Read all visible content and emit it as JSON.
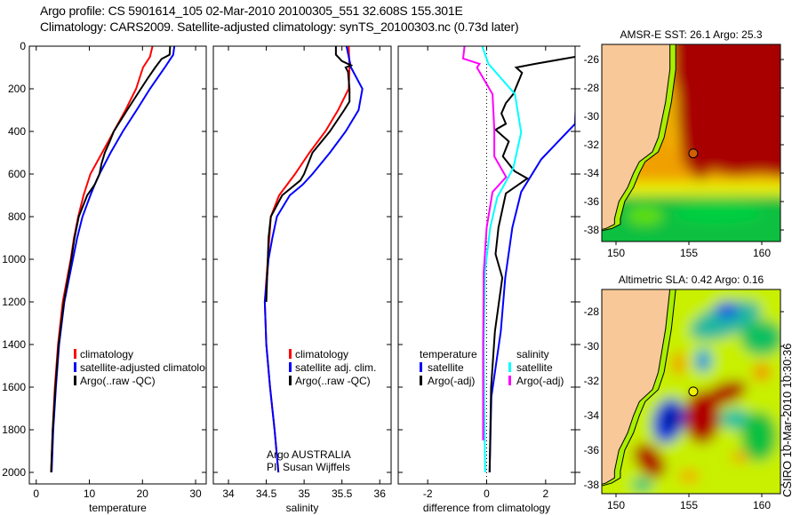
{
  "header": {
    "line1": "Argo profile: CS 5901614_105 02-Mar-2010 20100305_551 32.608S 155.301E",
    "line2": "Climatology: CARS2009. Satellite-adjusted climatology: synTS_20100303.nc (0.73d later)"
  },
  "side_text": "CSIRO 10-Mar-2010 10:30:36",
  "chart_data": [
    {
      "type": "line",
      "id": "temperature",
      "xlabel": "temperature",
      "ylabel": "",
      "xlim": [
        -1.3,
        32
      ],
      "ylim": [
        2055,
        0
      ],
      "xticks": [
        0,
        10,
        20,
        30
      ],
      "yticks": [
        0,
        200,
        400,
        600,
        800,
        1000,
        1200,
        1400,
        1600,
        1800,
        2000
      ],
      "legend": [
        "climatology",
        "satellite-adjusted climatology",
        "Argo(..raw -QC)"
      ],
      "series": [
        {
          "name": "climatology",
          "color": "#ff0000",
          "depth": [
            0,
            50,
            100,
            200,
            300,
            400,
            500,
            600,
            700,
            800,
            900,
            1000,
            1200,
            1400,
            1600,
            1800,
            2000
          ],
          "values": [
            21.9,
            21.4,
            20.1,
            18.8,
            16.8,
            14.6,
            12.4,
            10.2,
            8.9,
            7.9,
            7.1,
            6.5,
            5.0,
            4.1,
            3.5,
            3.1,
            2.8
          ]
        },
        {
          "name": "satellite-adjusted climatology",
          "color": "#0000ff",
          "depth": [
            0,
            40,
            100,
            200,
            300,
            400,
            500,
            600,
            650,
            700,
            800,
            900,
            1000,
            1200,
            1400,
            1600,
            1800,
            2000
          ],
          "values": [
            26.0,
            25.8,
            24.2,
            21.4,
            18.9,
            16.3,
            14.0,
            11.9,
            11.0,
            10.2,
            8.7,
            7.7,
            6.9,
            5.3,
            4.3,
            3.7,
            3.2,
            2.9
          ]
        },
        {
          "name": "Argo(..raw -QC)",
          "color": "#000000",
          "depth": [
            0,
            40,
            60,
            100,
            150,
            200,
            300,
            400,
            450,
            500,
            550,
            600,
            650,
            700,
            800,
            900,
            1000,
            1200,
            1400,
            1600,
            1800,
            2000
          ],
          "values": [
            25.2,
            25.1,
            23.6,
            22.4,
            21.0,
            19.7,
            17.1,
            14.6,
            13.8,
            12.9,
            12.3,
            11.9,
            11.0,
            9.6,
            8.0,
            7.2,
            6.6,
            5.2,
            4.2,
            3.6,
            3.1,
            2.8
          ]
        }
      ]
    },
    {
      "type": "line",
      "id": "salinity",
      "xlabel": "salinity",
      "xlim": [
        33.8,
        36.15
      ],
      "ylim": [
        2055,
        0
      ],
      "xticks": [
        34,
        34.5,
        35,
        35.5,
        36
      ],
      "yticks": [
        0,
        200,
        400,
        600,
        800,
        1000,
        1200,
        1400,
        1600,
        1800,
        2000
      ],
      "legend": [
        "climatology",
        "satellite adj. clim.",
        "Argo(..raw -QC)"
      ],
      "annotation": [
        "Argo AUSTRALIA",
        "PI: Susan Wijffels"
      ],
      "series": [
        {
          "name": "climatology",
          "color": "#ff0000",
          "depth": [
            0,
            100,
            200,
            300,
            400,
            500,
            600,
            700,
            800,
            900,
            1000,
            1200,
            1400,
            1600,
            1800,
            2000
          ],
          "values": [
            35.59,
            35.6,
            35.59,
            35.45,
            35.28,
            35.07,
            34.88,
            34.67,
            34.56,
            34.54,
            34.52,
            34.48,
            34.5,
            34.55,
            34.61,
            34.66
          ]
        },
        {
          "name": "satellite adj. clim.",
          "color": "#0000ff",
          "depth": [
            0,
            100,
            200,
            300,
            400,
            500,
            600,
            650,
            700,
            800,
            900,
            1000,
            1200,
            1400,
            1600,
            1800,
            2000
          ],
          "values": [
            35.56,
            35.62,
            35.77,
            35.72,
            35.55,
            35.34,
            35.11,
            34.98,
            34.81,
            34.64,
            34.58,
            34.53,
            34.48,
            34.5,
            34.55,
            34.61,
            34.66
          ]
        },
        {
          "name": "Argo(..raw -QC)",
          "color": "#000000",
          "depth": [
            0,
            40,
            70,
            90,
            100,
            120,
            200,
            260,
            300,
            400,
            500,
            600,
            630,
            700,
            800,
            900,
            1000,
            1100,
            1200
          ],
          "values": [
            35.42,
            35.42,
            35.5,
            35.62,
            35.55,
            35.58,
            35.6,
            35.6,
            35.53,
            35.34,
            35.11,
            35.0,
            34.95,
            34.71,
            34.56,
            34.53,
            34.52,
            34.51,
            34.5
          ]
        }
      ]
    },
    {
      "type": "line",
      "id": "difference",
      "xlabel": "difference from climatology",
      "xlim": [
        -3,
        3
      ],
      "ylim": [
        2055,
        0
      ],
      "xticks": [
        -2,
        0,
        2
      ],
      "yticks": [
        0,
        200,
        400,
        600,
        800,
        1000,
        1200,
        1400,
        1600,
        1800,
        2000
      ],
      "legend_groups": [
        {
          "header": "temperature",
          "items": [
            "satellite",
            "Argo(-adj)"
          ]
        },
        {
          "header": "salinity",
          "items": [
            "satellite",
            "Argo(-adj)"
          ]
        }
      ],
      "series": [
        {
          "name": "temperature satellite",
          "color": "#0000ff",
          "depth": [
            100,
            160,
            364,
            531,
            684,
            851,
            1087,
            1338,
            1645,
            2000
          ],
          "values": [
            3.1,
            3.05,
            3.0,
            1.85,
            1.17,
            0.87,
            0.63,
            0.48,
            0.16,
            0.1
          ]
        },
        {
          "name": "temperature Argo(-adj)",
          "color": "#000000",
          "depth": [
            30,
            50,
            83,
            100,
            125,
            225,
            267,
            316,
            364,
            392,
            447,
            517,
            587,
            621,
            691,
            851,
            976,
            1087,
            1338,
            1600,
            2000
          ],
          "values": [
            3.4,
            3.0,
            1.65,
            1.0,
            1.2,
            0.9,
            0.65,
            0.5,
            0.65,
            0.3,
            0.75,
            0.55,
            0.95,
            1.38,
            0.65,
            0.4,
            0.3,
            0.53,
            0.28,
            0.15,
            0.1
          ]
        },
        {
          "name": "salinity satellite",
          "color": "#00ffff",
          "depth": [
            0,
            83,
            225,
            405,
            572,
            710,
            851,
            1060,
            1400,
            1700,
            2000
          ],
          "values": [
            -0.15,
            0.06,
            0.96,
            1.17,
            0.9,
            0.36,
            0.12,
            -0.06,
            -0.1,
            -0.08,
            -0.05
          ]
        },
        {
          "name": "salinity Argo(-adj)",
          "color": "#ff00ff",
          "depth": [
            0,
            58,
            83,
            100,
            225,
            392,
            517,
            614,
            684,
            851,
            1060,
            1400,
            1850
          ],
          "values": [
            -0.75,
            -0.8,
            -0.24,
            -0.33,
            0.2,
            0.26,
            0.26,
            0.66,
            0.2,
            0.0,
            -0.1,
            -0.12,
            -0.12
          ]
        }
      ]
    }
  ],
  "maps": [
    {
      "title": "AMSR-E SST: 26.1 Argo: 25.3",
      "lon_ticks": [
        150,
        155,
        160
      ],
      "lat_ticks": [
        -26,
        -28,
        -30,
        -32,
        -34,
        -36,
        -38
      ],
      "argo_lon": 155.301,
      "argo_lat": -32.608,
      "marker_color": "#d06000"
    },
    {
      "title": "Altimetric SLA: 0.42 Argo: 0.16",
      "lon_ticks": [
        150,
        155,
        160
      ],
      "lat_ticks": [
        -28,
        -30,
        -32,
        -34,
        -36,
        -38
      ],
      "argo_lon": 155.301,
      "argo_lat": -32.608,
      "marker_color": "#f0f000"
    }
  ]
}
